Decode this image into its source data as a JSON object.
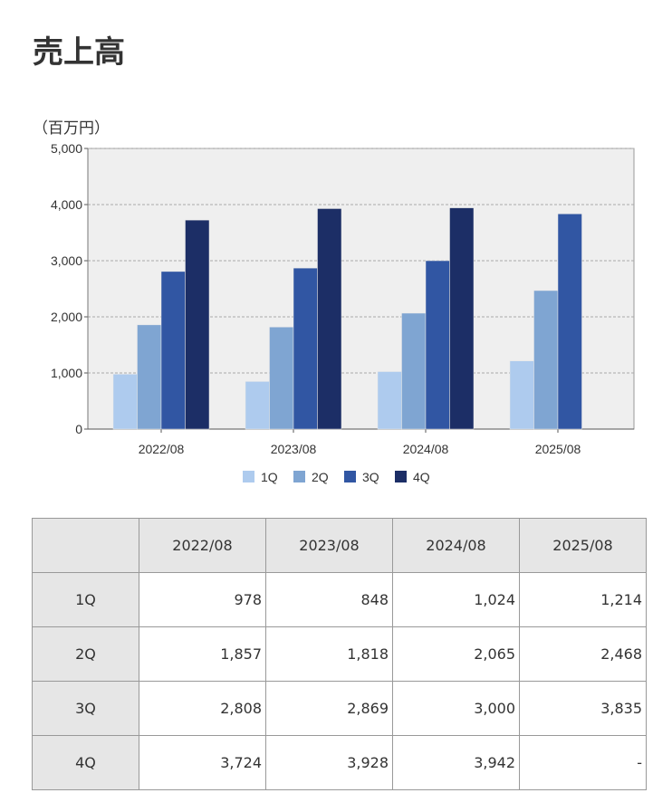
{
  "title": "売上高",
  "chart_data": {
    "type": "bar",
    "unit_label": "（百万円）",
    "categories": [
      "2022/08",
      "2023/08",
      "2024/08",
      "2025/08"
    ],
    "series": [
      {
        "name": "1Q",
        "color": "#aecbee",
        "values": [
          978,
          848,
          1024,
          1214
        ]
      },
      {
        "name": "2Q",
        "color": "#7fa5d2",
        "values": [
          1857,
          1818,
          2065,
          2468
        ]
      },
      {
        "name": "3Q",
        "color": "#3156a3",
        "values": [
          2808,
          2869,
          3000,
          3835
        ]
      },
      {
        "name": "4Q",
        "color": "#1c2e66",
        "values": [
          3724,
          3928,
          3942,
          null
        ]
      }
    ],
    "ylim": [
      0,
      5000
    ],
    "yticks": [
      "0",
      "1,000",
      "2,000",
      "3,000",
      "4,000",
      "5,000"
    ],
    "grid": true,
    "legend": "bottom"
  },
  "table": {
    "headers": [
      "",
      "2022/08",
      "2023/08",
      "2024/08",
      "2025/08"
    ],
    "rows": [
      {
        "label": "1Q",
        "values": [
          "978",
          "848",
          "1,024",
          "1,214"
        ]
      },
      {
        "label": "2Q",
        "values": [
          "1,857",
          "1,818",
          "2,065",
          "2,468"
        ]
      },
      {
        "label": "3Q",
        "values": [
          "2,808",
          "2,869",
          "3,000",
          "3,835"
        ]
      },
      {
        "label": "4Q",
        "values": [
          "3,724",
          "3,928",
          "3,942",
          "-"
        ]
      }
    ]
  }
}
